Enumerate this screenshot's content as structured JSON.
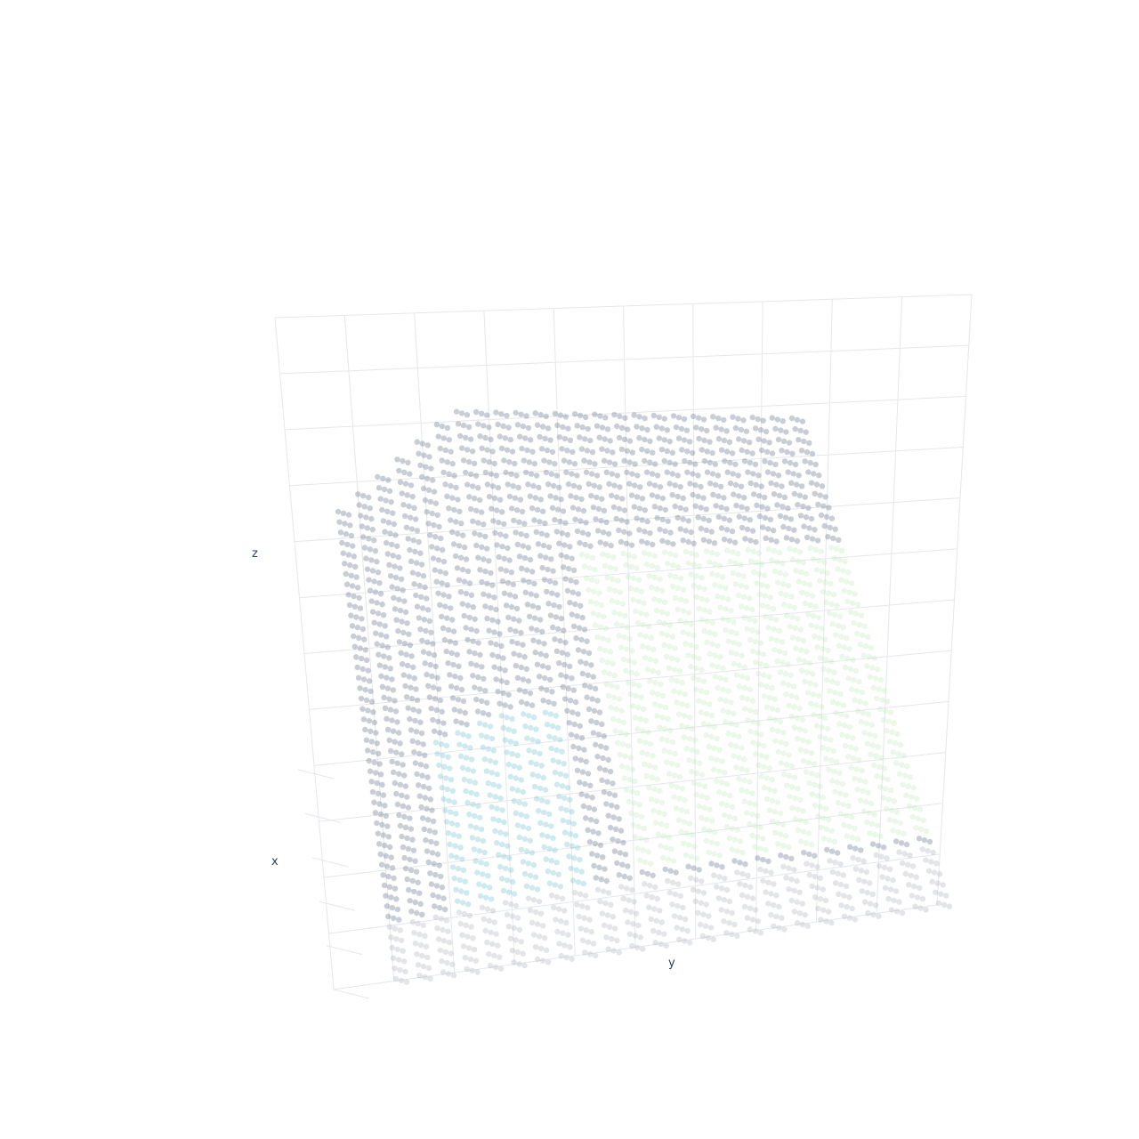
{
  "chart_data": {
    "type": "scatter",
    "projection": "3d",
    "title": "",
    "xlabel": "x",
    "ylabel": "y",
    "zlabel": "z",
    "grid": true,
    "legend": "none",
    "marker_opacity": 0.3,
    "colorscale": [
      "#4b5d77",
      "#5fb8c7",
      "#b9e6b7",
      "#a3a9b2"
    ],
    "series": [
      {
        "sheets_along_y": 24,
        "points_per_sheet_column": 60,
        "y_range": [
          0,
          23
        ],
        "z_range": [
          0,
          1
        ],
        "region_colors": {
          "back_wall": "#4b5d77",
          "left_basin": "#5fb8c7",
          "right_plateau": "#b9e6b7",
          "near_edge": "#a3a9b2"
        }
      }
    ]
  },
  "colors": {
    "grid": "#e5e7eb",
    "axis_text": "#2a3f5f",
    "background": "#ffffff"
  }
}
